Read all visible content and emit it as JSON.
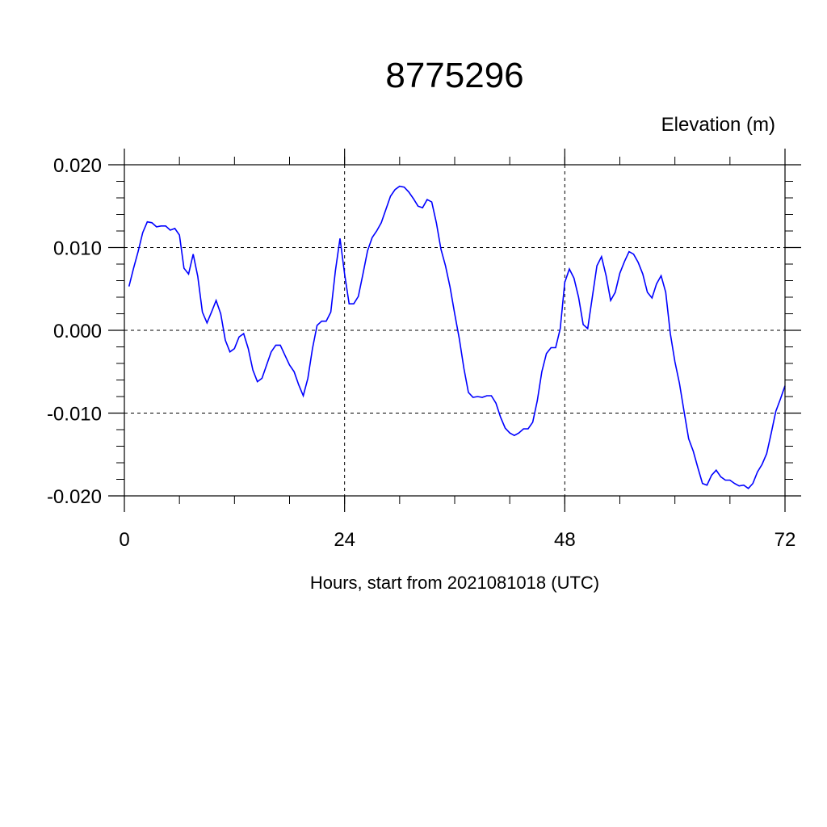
{
  "chart_data": {
    "type": "line",
    "title": "8775296",
    "ylabel": "Elevation (m)",
    "xlabel": "Hours, start from 2021081018 (UTC)",
    "xlim": [
      0,
      72
    ],
    "ylim": [
      -0.02,
      0.02
    ],
    "x_ticks": [
      0,
      24,
      48,
      72
    ],
    "x_tick_labels": [
      "0",
      "24",
      "48",
      "72"
    ],
    "y_ticks": [
      -0.02,
      -0.01,
      0.0,
      0.01,
      0.02
    ],
    "y_tick_labels": [
      "-0.020",
      "-0.010",
      "0.000",
      "0.010",
      "0.020"
    ],
    "grid": true,
    "line_color": "#0000ff",
    "series": [
      {
        "x": [
          0.5,
          1.0,
          1.5,
          2.0,
          2.5,
          3.0,
          3.5,
          4.0,
          4.5,
          5.0,
          5.5,
          6.0,
          6.5,
          7.0,
          7.5,
          8.0,
          8.5,
          9.0,
          9.5,
          10.0,
          10.5,
          11.0,
          11.5,
          12.0,
          12.5,
          13.0,
          13.5,
          14.0,
          14.5,
          15.0,
          15.5,
          16.0,
          16.5,
          17.0,
          17.5,
          18.0,
          18.5,
          19.0,
          19.5,
          20.0,
          20.5,
          21.0,
          21.5,
          22.0,
          22.5,
          23.0,
          23.5,
          24.0,
          24.5,
          25.0,
          25.5,
          26.0,
          26.5,
          27.0,
          27.5,
          28.0,
          28.5,
          29.0,
          29.5,
          30.0,
          30.5,
          31.0,
          31.5,
          32.0,
          32.5,
          33.0,
          33.5,
          34.0,
          34.5,
          35.0,
          35.5,
          36.0,
          36.5,
          37.0,
          37.5,
          38.0,
          38.5,
          39.0,
          39.5,
          40.0,
          40.5,
          41.0,
          41.5,
          42.0,
          42.5,
          43.0,
          43.5,
          44.0,
          44.5,
          45.0,
          45.5,
          46.0,
          46.5,
          47.0,
          47.5,
          48.0,
          48.5,
          49.0,
          49.5,
          50.0,
          50.5,
          51.0,
          51.5,
          52.0,
          52.5,
          53.0,
          53.5,
          54.0,
          54.5,
          55.0,
          55.5,
          56.0,
          56.5,
          57.0,
          57.5,
          58.0,
          58.5,
          59.0,
          59.5,
          60.0,
          60.5,
          61.0,
          61.5,
          62.0,
          62.5,
          63.0,
          63.5,
          64.0,
          64.5,
          65.0,
          65.5,
          66.0,
          66.5,
          67.0,
          67.5,
          68.0,
          68.5,
          69.0,
          69.5,
          70.0,
          70.5,
          71.0,
          71.5,
          72.0
        ],
        "y": [
          0.0053,
          0.0075,
          0.0095,
          0.0118,
          0.0131,
          0.013,
          0.0125,
          0.0126,
          0.0126,
          0.0121,
          0.0123,
          0.0115,
          0.0075,
          0.0068,
          0.0092,
          0.0065,
          0.0022,
          0.0009,
          0.0022,
          0.0036,
          0.002,
          -0.0012,
          -0.0026,
          -0.0022,
          -0.0008,
          -0.0004,
          -0.0022,
          -0.0048,
          -0.0062,
          -0.0058,
          -0.0042,
          -0.0026,
          -0.0018,
          -0.0018,
          -0.003,
          -0.0042,
          -0.005,
          -0.0066,
          -0.0079,
          -0.0058,
          -0.0022,
          0.0006,
          0.0011,
          0.0011,
          0.0022,
          0.0072,
          0.0111,
          0.0068,
          0.0032,
          0.0032,
          0.0041,
          0.0068,
          0.0096,
          0.0112,
          0.012,
          0.013,
          0.0146,
          0.0162,
          0.017,
          0.0174,
          0.0173,
          0.0167,
          0.0159,
          0.015,
          0.0148,
          0.0158,
          0.0155,
          0.013,
          0.0098,
          0.0078,
          0.0052,
          0.002,
          -0.001,
          -0.0046,
          -0.0075,
          -0.0081,
          -0.008,
          -0.0081,
          -0.0079,
          -0.0079,
          -0.0088,
          -0.0105,
          -0.0118,
          -0.0124,
          -0.0127,
          -0.0124,
          -0.0119,
          -0.0119,
          -0.0111,
          -0.0085,
          -0.005,
          -0.0028,
          -0.0021,
          -0.0021,
          0.0002,
          0.0058,
          0.0074,
          0.0063,
          0.004,
          0.0007,
          0.0002,
          0.004,
          0.0078,
          0.0089,
          0.0066,
          0.0036,
          0.0046,
          0.0069,
          0.0083,
          0.0095,
          0.0092,
          0.0082,
          0.0068,
          0.0046,
          0.0039,
          0.0056,
          0.0066,
          0.0046,
          -0.0004,
          -0.0038,
          -0.0064,
          -0.0098,
          -0.0131,
          -0.0146,
          -0.0166,
          -0.0185,
          -0.0187,
          -0.0175,
          -0.0169,
          -0.0177,
          -0.0181,
          -0.0181,
          -0.0185,
          -0.0188,
          -0.0187,
          -0.0191,
          -0.0185,
          -0.0171,
          -0.0162,
          -0.0149,
          -0.0124,
          -0.0098,
          -0.0083,
          -0.0067
        ]
      }
    ]
  }
}
